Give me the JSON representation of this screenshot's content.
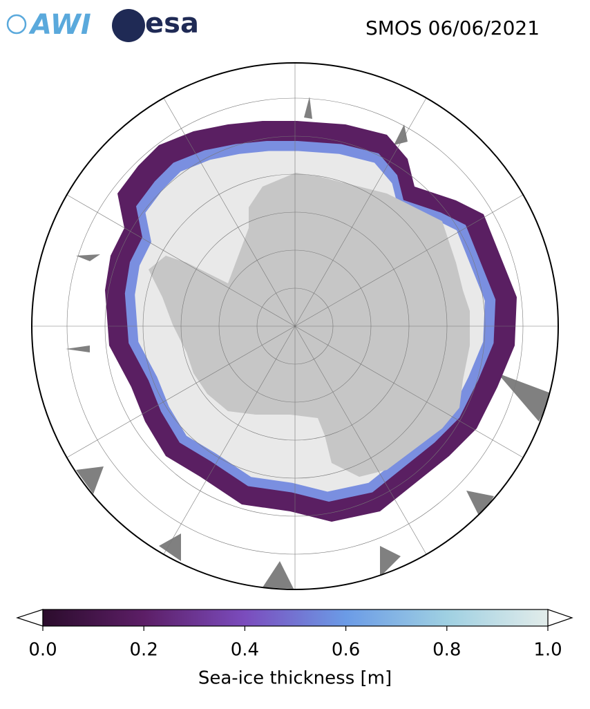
{
  "logos": {
    "awi": "AWI",
    "esa": "esa"
  },
  "map": {
    "title": "SMOS 06/06/2021"
  },
  "colorbar": {
    "label": "Sea-ice thickness [m]",
    "lim": [
      0,
      1
    ],
    "ticks": [
      {
        "value": 0,
        "label": "0.0"
      },
      {
        "value": 0.2,
        "label": "0.2"
      },
      {
        "value": 0.4,
        "label": "0.4"
      },
      {
        "value": 0.6,
        "label": "0.6"
      },
      {
        "value": 0.8,
        "label": "0.8"
      },
      {
        "value": 1,
        "label": "1.0"
      }
    ],
    "colors": [
      "#2b0c2c",
      "#5c1e66",
      "#7b4cbd",
      "#6b9be6",
      "#9fd0e2",
      "#e2ecea"
    ]
  }
}
